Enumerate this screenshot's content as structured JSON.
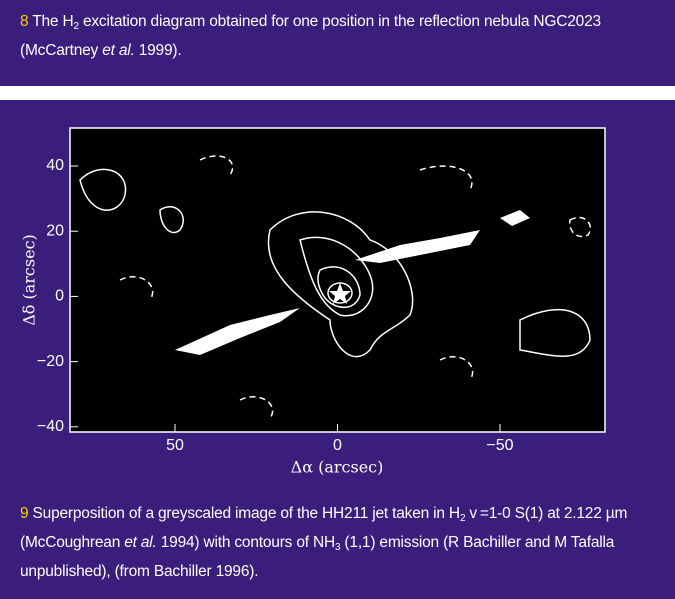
{
  "figure8": {
    "caption": [
      {
        "text": "8",
        "style": "number"
      },
      {
        "text": " The H",
        "style": "plain"
      },
      {
        "text": "2",
        "style": "sub"
      },
      {
        "text": " excitation diagram obtained for one position in the reflection nebula NGC2023 (McCartney ",
        "style": "plain"
      },
      {
        "text": "et al.",
        "style": "italic"
      },
      {
        "text": " 1999).",
        "style": "plain"
      }
    ]
  },
  "figure9": {
    "image": {
      "y_label": "Δδ (arcsec)",
      "x_label": "Δα (arcsec)",
      "yticks": [
        "40",
        "20",
        "0",
        "−20",
        "−40"
      ],
      "xticks": [
        "50",
        "0",
        "−50"
      ]
    },
    "caption": [
      {
        "text": "9",
        "style": "number"
      },
      {
        "text": " Superposition of a greyscaled image of the HH211 jet taken in H",
        "style": "plain"
      },
      {
        "text": "2",
        "style": "sub"
      },
      {
        "text": " v =1-0 S(1) at 2.122 µm (McCoughrean ",
        "style": "plain"
      },
      {
        "text": "et al.",
        "style": "italic"
      },
      {
        "text": " 1994) with contours of NH",
        "style": "plain"
      },
      {
        "text": "3",
        "style": "sub"
      },
      {
        "text": " (1,1) emission (R Bachiller and M Tafalla unpublished), (from Bachiller 1996).",
        "style": "plain"
      }
    ]
  }
}
